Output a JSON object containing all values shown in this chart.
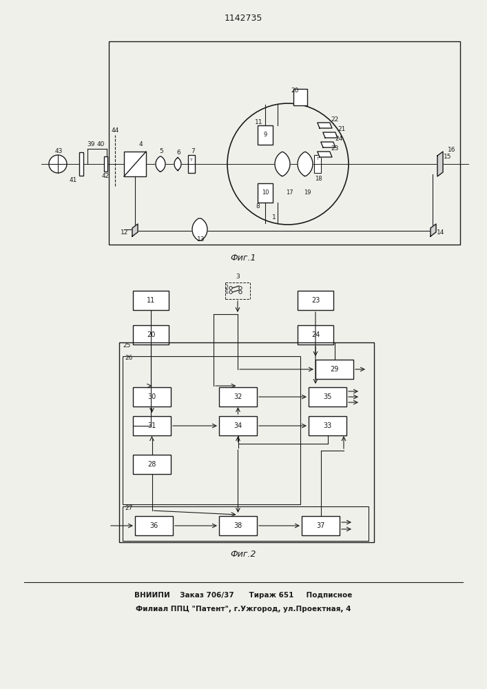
{
  "title": "1142735",
  "fig1_caption": "Фиг.1",
  "fig2_caption": "Фиг.2",
  "footer_line1": "ВНИИПИ    Заказ 706/37      Тираж 651     Подписное",
  "footer_line2": "Филиал ППЦ \"Патент\", г.Ужгород, ул.Проектная, 4",
  "bg_color": "#f0f0eb",
  "line_color": "#1a1a1a",
  "box_color": "#ffffff"
}
